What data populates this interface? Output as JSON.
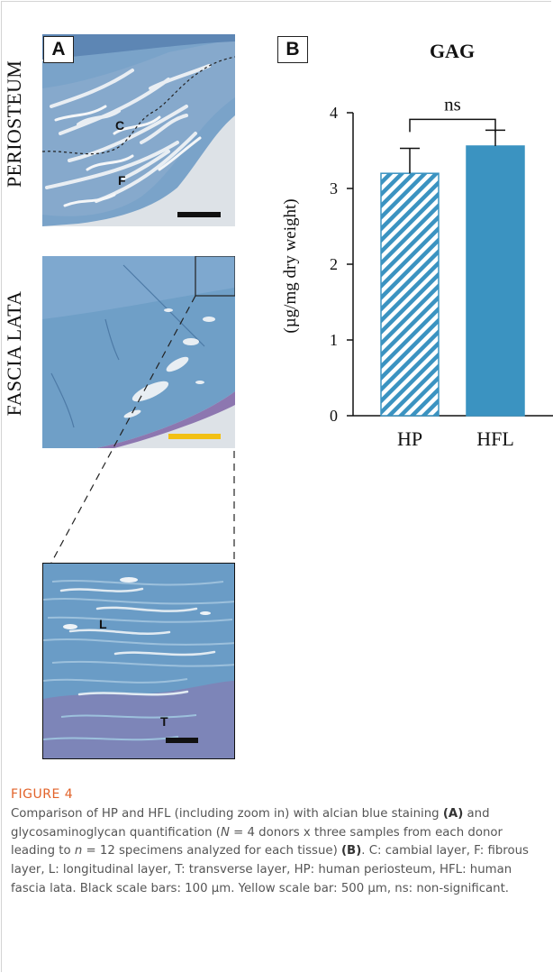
{
  "panel_a": {
    "label": "A",
    "periosteum_label": "PERIOSTEUM",
    "fascia_label": "FASCIA LATA",
    "layer_tags": {
      "cambial": "C",
      "fibrous": "F",
      "longitudinal": "L",
      "transverse": "T"
    },
    "colors": {
      "tissue": "#6f9fc7",
      "tissue_dark": "#4f7fb0",
      "background": "#d8dde3",
      "scale_black": "#111111",
      "scale_yellow": "#f2c014"
    }
  },
  "panel_b": {
    "label": "B"
  },
  "chart_data": {
    "type": "bar",
    "title": "GAG",
    "categories": [
      "HP",
      "HFL"
    ],
    "values": [
      3.2,
      3.56
    ],
    "errors": [
      0.33,
      0.21
    ],
    "ylabel": "(µg/mg dry weight)",
    "xlabel": "",
    "ylim": [
      0,
      4
    ],
    "yticks": [
      0,
      1,
      2,
      3,
      4
    ],
    "significance": "ns",
    "bar_color": "#3b93c1",
    "fill_patterns": [
      "diagonal-stripes",
      "solid"
    ],
    "grid": false
  },
  "caption": {
    "title": "FIGURE 4",
    "text_1": "Comparison of HP and HFL (including zoom in) with alcian blue staining ",
    "ref_a": "(A)",
    "text_2": " and glycosaminoglycan quantification (",
    "n_big": "N",
    "text_3": " = 4 donors x three samples from each donor leading to ",
    "n_small": "n",
    "text_4": " = 12 specimens analyzed for each tissue) ",
    "ref_b": "(B)",
    "text_5": ". C: cambial layer, F: fibrous layer, L: longitudinal layer, T: transverse layer, HP: human periosteum, HFL: human fascia lata. Black scale bars: 100 µm. Yellow scale bar: 500 µm, ns: non-significant."
  }
}
